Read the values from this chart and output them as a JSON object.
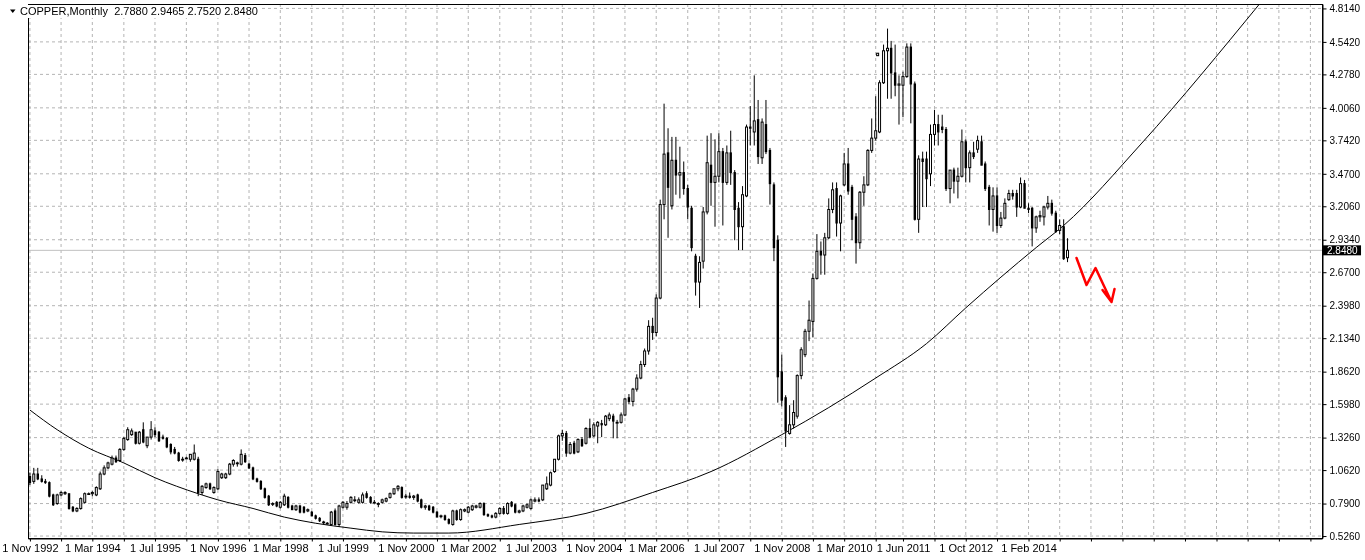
{
  "chart_data": {
    "type": "candlestick",
    "title": "COPPER,Monthly  2.7880 2.9465 2.7520 2.8480",
    "color": "#000000",
    "x": [
      "1992-11",
      "1992-12",
      "1993-01",
      "1993-02",
      "1993-03",
      "1993-04",
      "1993-05",
      "1993-06",
      "1993-07",
      "1993-08",
      "1993-09",
      "1993-10",
      "1993-11",
      "1993-12",
      "1994-01",
      "1994-02",
      "1994-03",
      "1994-04",
      "1994-05",
      "1994-06",
      "1994-07",
      "1994-08",
      "1994-09",
      "1994-10",
      "1994-11",
      "1994-12",
      "1995-01",
      "1995-02",
      "1995-03",
      "1995-04",
      "1995-05",
      "1995-06",
      "1995-07",
      "1995-08",
      "1995-09",
      "1995-10",
      "1995-11",
      "1995-12",
      "1996-01",
      "1996-02",
      "1996-03",
      "1996-04",
      "1996-05",
      "1996-06",
      "1996-07",
      "1996-08",
      "1996-09",
      "1996-10",
      "1996-11",
      "1996-12",
      "1997-01",
      "1997-02",
      "1997-03",
      "1997-04",
      "1997-05",
      "1997-06",
      "1997-07",
      "1997-08",
      "1997-09",
      "1997-10",
      "1997-11",
      "1997-12",
      "1998-01",
      "1998-02",
      "1998-03",
      "1998-04",
      "1998-05",
      "1998-06",
      "1998-07",
      "1998-08",
      "1998-09",
      "1998-10",
      "1998-11",
      "1998-12",
      "1999-01",
      "1999-02",
      "1999-03",
      "1999-04",
      "1999-05",
      "1999-06",
      "1999-07",
      "1999-08",
      "1999-09",
      "1999-10",
      "1999-11",
      "1999-12",
      "2000-01",
      "2000-02",
      "2000-03",
      "2000-04",
      "2000-05",
      "2000-06",
      "2000-07",
      "2000-08",
      "2000-09",
      "2000-10",
      "2000-11",
      "2000-12",
      "2001-01",
      "2001-02",
      "2001-03",
      "2001-04",
      "2001-05",
      "2001-06",
      "2001-07",
      "2001-08",
      "2001-09",
      "2001-10",
      "2001-11",
      "2001-12",
      "2002-01",
      "2002-02",
      "2002-03",
      "2002-04",
      "2002-05",
      "2002-06",
      "2002-07",
      "2002-08",
      "2002-09",
      "2002-10",
      "2002-11",
      "2002-12",
      "2003-01",
      "2003-02",
      "2003-03",
      "2003-04",
      "2003-05",
      "2003-06",
      "2003-07",
      "2003-08",
      "2003-09",
      "2003-10",
      "2003-11",
      "2003-12",
      "2004-01",
      "2004-02",
      "2004-03",
      "2004-04",
      "2004-05",
      "2004-06",
      "2004-07",
      "2004-08",
      "2004-09",
      "2004-10",
      "2004-11",
      "2004-12",
      "2005-01",
      "2005-02",
      "2005-03",
      "2005-04",
      "2005-05",
      "2005-06",
      "2005-07",
      "2005-08",
      "2005-09",
      "2005-10",
      "2005-11",
      "2005-12",
      "2006-01",
      "2006-02",
      "2006-03",
      "2006-04",
      "2006-05",
      "2006-06",
      "2006-07",
      "2006-08",
      "2006-09",
      "2006-10",
      "2006-11",
      "2006-12",
      "2007-01",
      "2007-02",
      "2007-03",
      "2007-04",
      "2007-05",
      "2007-06",
      "2007-07",
      "2007-08",
      "2007-09",
      "2007-10",
      "2007-11",
      "2007-12",
      "2008-01",
      "2008-02",
      "2008-03",
      "2008-04",
      "2008-05",
      "2008-06",
      "2008-07",
      "2008-08",
      "2008-09",
      "2008-10",
      "2008-11",
      "2008-12",
      "2009-01",
      "2009-02",
      "2009-03",
      "2009-04",
      "2009-05",
      "2009-06",
      "2009-07",
      "2009-08",
      "2009-09",
      "2009-10",
      "2009-11",
      "2009-12",
      "2010-01",
      "2010-02",
      "2010-03",
      "2010-04",
      "2010-05",
      "2010-06",
      "2010-07",
      "2010-08",
      "2010-09",
      "2010-10",
      "2010-11",
      "2010-11-16",
      "2010-12",
      "2011-01",
      "2011-02",
      "2011-03",
      "2011-04",
      "2011-05",
      "2011-06",
      "2011-07",
      "2011-08",
      "2011-09",
      "2011-10",
      "2011-11",
      "2011-12",
      "2012-01",
      "2012-02",
      "2012-03",
      "2012-04",
      "2012-05",
      "2012-06",
      "2012-07",
      "2012-08",
      "2012-09",
      "2012-10",
      "2012-11",
      "2012-12",
      "2013-01",
      "2013-02",
      "2013-03",
      "2013-04",
      "2013-05",
      "2013-06",
      "2013-07",
      "2013-08",
      "2013-09",
      "2013-10",
      "2013-11",
      "2013-12",
      "2014-01",
      "2014-02",
      "2014-03",
      "2014-04",
      "2014-05",
      "2014-06",
      "2014-07",
      "2014-08",
      "2014-09",
      "2014-10",
      "2014-11",
      "2014-12"
    ],
    "ohlc": [
      [
        1.01,
        1.04,
        0.94,
        0.96
      ],
      [
        0.97,
        1.08,
        0.95,
        1.03
      ],
      [
        1.03,
        1.08,
        0.98,
        0.99
      ],
      [
        0.99,
        1.02,
        0.96,
        0.97
      ],
      [
        0.97,
        0.99,
        0.95,
        0.96
      ],
      [
        0.96,
        0.97,
        0.84,
        0.85
      ],
      [
        0.86,
        0.87,
        0.77,
        0.78
      ],
      [
        0.79,
        0.87,
        0.78,
        0.86
      ],
      [
        0.86,
        0.89,
        0.85,
        0.88
      ],
      [
        0.87,
        0.89,
        0.86,
        0.88
      ],
      [
        0.87,
        0.87,
        0.74,
        0.75
      ],
      [
        0.76,
        0.77,
        0.72,
        0.73
      ],
      [
        0.73,
        0.76,
        0.72,
        0.75
      ],
      [
        0.75,
        0.84,
        0.74,
        0.83
      ],
      [
        0.8,
        0.88,
        0.79,
        0.87
      ],
      [
        0.87,
        0.88,
        0.86,
        0.87
      ],
      [
        0.87,
        0.89,
        0.85,
        0.88
      ],
      [
        0.86,
        0.93,
        0.85,
        0.92
      ],
      [
        0.91,
        1.05,
        0.9,
        1.03
      ],
      [
        1.03,
        1.1,
        1.02,
        1.08
      ],
      [
        1.08,
        1.13,
        1.07,
        1.12
      ],
      [
        1.11,
        1.18,
        1.1,
        1.16
      ],
      [
        1.16,
        1.18,
        1.12,
        1.13
      ],
      [
        1.14,
        1.24,
        1.13,
        1.23
      ],
      [
        1.23,
        1.33,
        1.22,
        1.32
      ],
      [
        1.31,
        1.41,
        1.3,
        1.39
      ],
      [
        1.35,
        1.4,
        1.34,
        1.38
      ],
      [
        1.37,
        1.37,
        1.27,
        1.28
      ],
      [
        1.28,
        1.38,
        1.27,
        1.37
      ],
      [
        1.39,
        1.45,
        1.28,
        1.29
      ],
      [
        1.26,
        1.33,
        1.24,
        1.33
      ],
      [
        1.33,
        1.46,
        1.31,
        1.39
      ],
      [
        1.38,
        1.41,
        1.33,
        1.35
      ],
      [
        1.37,
        1.38,
        1.29,
        1.3
      ],
      [
        1.33,
        1.35,
        1.31,
        1.32
      ],
      [
        1.32,
        1.33,
        1.24,
        1.25
      ],
      [
        1.27,
        1.28,
        1.19,
        1.21
      ],
      [
        1.23,
        1.25,
        1.19,
        1.2
      ],
      [
        1.2,
        1.21,
        1.13,
        1.14
      ],
      [
        1.15,
        1.17,
        1.13,
        1.15
      ],
      [
        1.16,
        1.17,
        1.15,
        1.16
      ],
      [
        1.15,
        1.19,
        1.13,
        1.19
      ],
      [
        1.15,
        1.27,
        1.14,
        1.2
      ],
      [
        1.15,
        1.17,
        0.85,
        0.88
      ],
      [
        0.88,
        0.94,
        0.86,
        0.93
      ],
      [
        0.92,
        0.96,
        0.91,
        0.95
      ],
      [
        0.95,
        0.96,
        0.9,
        0.91
      ],
      [
        0.88,
        0.93,
        0.87,
        0.92
      ],
      [
        0.91,
        1.07,
        0.9,
        1.05
      ],
      [
        1.0,
        1.04,
        0.99,
        1.03
      ],
      [
        1.0,
        1.04,
        0.99,
        1.03
      ],
      [
        1.03,
        1.12,
        1.02,
        1.11
      ],
      [
        1.11,
        1.15,
        1.09,
        1.14
      ],
      [
        1.12,
        1.13,
        1.09,
        1.12
      ],
      [
        1.11,
        1.23,
        1.1,
        1.19
      ],
      [
        1.18,
        1.2,
        1.12,
        1.13
      ],
      [
        1.11,
        1.12,
        1.07,
        1.08
      ],
      [
        1.08,
        1.09,
        0.98,
        0.99
      ],
      [
        0.99,
        1.0,
        0.96,
        0.97
      ],
      [
        0.97,
        0.98,
        0.9,
        0.91
      ],
      [
        0.91,
        0.92,
        0.83,
        0.84
      ],
      [
        0.85,
        0.86,
        0.77,
        0.78
      ],
      [
        0.79,
        0.8,
        0.77,
        0.79
      ],
      [
        0.8,
        0.81,
        0.76,
        0.77
      ],
      [
        0.76,
        0.81,
        0.75,
        0.8
      ],
      [
        0.78,
        0.87,
        0.77,
        0.85
      ],
      [
        0.84,
        0.85,
        0.75,
        0.76
      ],
      [
        0.77,
        0.78,
        0.74,
        0.74
      ],
      [
        0.74,
        0.78,
        0.73,
        0.77
      ],
      [
        0.77,
        0.78,
        0.71,
        0.72
      ],
      [
        0.76,
        0.77,
        0.71,
        0.72
      ],
      [
        0.73,
        0.75,
        0.72,
        0.74
      ],
      [
        0.72,
        0.73,
        0.69,
        0.69
      ],
      [
        0.69,
        0.7,
        0.66,
        0.67
      ],
      [
        0.67,
        0.68,
        0.64,
        0.65
      ],
      [
        0.64,
        0.65,
        0.62,
        0.64
      ],
      [
        0.63,
        0.64,
        0.62,
        0.63
      ],
      [
        0.62,
        0.73,
        0.61,
        0.72
      ],
      [
        0.73,
        0.75,
        0.61,
        0.62
      ],
      [
        0.62,
        0.78,
        0.6,
        0.77
      ],
      [
        0.76,
        0.81,
        0.75,
        0.8
      ],
      [
        0.76,
        0.81,
        0.74,
        0.79
      ],
      [
        0.8,
        0.85,
        0.79,
        0.84
      ],
      [
        0.82,
        0.85,
        0.8,
        0.82
      ],
      [
        0.8,
        0.84,
        0.79,
        0.82
      ],
      [
        0.8,
        0.88,
        0.79,
        0.86
      ],
      [
        0.87,
        0.89,
        0.83,
        0.84
      ],
      [
        0.84,
        0.85,
        0.79,
        0.8
      ],
      [
        0.8,
        0.82,
        0.79,
        0.8
      ],
      [
        0.79,
        0.8,
        0.76,
        0.79
      ],
      [
        0.8,
        0.83,
        0.79,
        0.82
      ],
      [
        0.81,
        0.84,
        0.8,
        0.83
      ],
      [
        0.84,
        0.88,
        0.83,
        0.87
      ],
      [
        0.87,
        0.91,
        0.86,
        0.91
      ],
      [
        0.91,
        0.94,
        0.89,
        0.93
      ],
      [
        0.92,
        0.93,
        0.83,
        0.84
      ],
      [
        0.85,
        0.87,
        0.83,
        0.85
      ],
      [
        0.85,
        0.88,
        0.83,
        0.84
      ],
      [
        0.84,
        0.86,
        0.82,
        0.85
      ],
      [
        0.86,
        0.87,
        0.8,
        0.81
      ],
      [
        0.82,
        0.83,
        0.75,
        0.76
      ],
      [
        0.76,
        0.78,
        0.74,
        0.77
      ],
      [
        0.77,
        0.78,
        0.73,
        0.74
      ],
      [
        0.76,
        0.77,
        0.71,
        0.72
      ],
      [
        0.72,
        0.73,
        0.68,
        0.68
      ],
      [
        0.69,
        0.7,
        0.67,
        0.69
      ],
      [
        0.69,
        0.7,
        0.65,
        0.66
      ],
      [
        0.66,
        0.67,
        0.62,
        0.63
      ],
      [
        0.62,
        0.74,
        0.61,
        0.73
      ],
      [
        0.73,
        0.74,
        0.65,
        0.66
      ],
      [
        0.66,
        0.75,
        0.65,
        0.74
      ],
      [
        0.73,
        0.75,
        0.72,
        0.74
      ],
      [
        0.72,
        0.77,
        0.71,
        0.76
      ],
      [
        0.74,
        0.78,
        0.73,
        0.77
      ],
      [
        0.76,
        0.78,
        0.75,
        0.77
      ],
      [
        0.76,
        0.8,
        0.75,
        0.79
      ],
      [
        0.79,
        0.8,
        0.69,
        0.7
      ],
      [
        0.7,
        0.71,
        0.68,
        0.69
      ],
      [
        0.69,
        0.7,
        0.67,
        0.68
      ],
      [
        0.68,
        0.72,
        0.67,
        0.71
      ],
      [
        0.71,
        0.76,
        0.7,
        0.75
      ],
      [
        0.75,
        0.77,
        0.7,
        0.71
      ],
      [
        0.71,
        0.8,
        0.7,
        0.79
      ],
      [
        0.8,
        0.81,
        0.76,
        0.77
      ],
      [
        0.78,
        0.79,
        0.71,
        0.72
      ],
      [
        0.72,
        0.74,
        0.71,
        0.73
      ],
      [
        0.73,
        0.78,
        0.72,
        0.77
      ],
      [
        0.76,
        0.79,
        0.75,
        0.78
      ],
      [
        0.75,
        0.83,
        0.74,
        0.82
      ],
      [
        0.81,
        0.84,
        0.8,
        0.82
      ],
      [
        0.82,
        0.84,
        0.8,
        0.81
      ],
      [
        0.82,
        0.94,
        0.81,
        0.94
      ],
      [
        0.91,
        1.01,
        0.9,
        0.95
      ],
      [
        0.94,
        1.05,
        0.93,
        1.04
      ],
      [
        1.05,
        1.15,
        1.04,
        1.15
      ],
      [
        1.15,
        1.35,
        1.14,
        1.34
      ],
      [
        1.34,
        1.39,
        1.3,
        1.36
      ],
      [
        1.36,
        1.38,
        1.17,
        1.2
      ],
      [
        1.2,
        1.29,
        1.19,
        1.27
      ],
      [
        1.28,
        1.3,
        1.19,
        1.2
      ],
      [
        1.21,
        1.32,
        1.2,
        1.31
      ],
      [
        1.31,
        1.33,
        1.25,
        1.26
      ],
      [
        1.28,
        1.41,
        1.27,
        1.4
      ],
      [
        1.4,
        1.48,
        1.32,
        1.33
      ],
      [
        1.34,
        1.45,
        1.33,
        1.43
      ],
      [
        1.42,
        1.46,
        1.28,
        1.45
      ],
      [
        1.44,
        1.47,
        1.33,
        1.43
      ],
      [
        1.43,
        1.51,
        1.42,
        1.5
      ],
      [
        1.48,
        1.53,
        1.46,
        1.51
      ],
      [
        1.5,
        1.52,
        1.32,
        1.46
      ],
      [
        1.45,
        1.47,
        1.32,
        1.45
      ],
      [
        1.45,
        1.53,
        1.44,
        1.51
      ],
      [
        1.51,
        1.65,
        1.5,
        1.64
      ],
      [
        1.65,
        1.68,
        1.6,
        1.62
      ],
      [
        1.62,
        1.73,
        1.58,
        1.72
      ],
      [
        1.72,
        1.84,
        1.7,
        1.81
      ],
      [
        1.81,
        1.95,
        1.8,
        1.92
      ],
      [
        1.92,
        2.05,
        1.9,
        2.03
      ],
      [
        2.03,
        2.28,
        2.0,
        2.23
      ],
      [
        2.23,
        2.3,
        2.12,
        2.18
      ],
      [
        2.18,
        2.49,
        2.15,
        2.46
      ],
      [
        2.46,
        3.26,
        2.45,
        3.22
      ],
      [
        3.22,
        4.04,
        3.1,
        3.63
      ],
      [
        3.64,
        3.84,
        2.95,
        3.36
      ],
      [
        3.21,
        3.77,
        3.18,
        3.58
      ],
      [
        3.58,
        3.77,
        3.3,
        3.46
      ],
      [
        3.46,
        3.69,
        3.27,
        3.48
      ],
      [
        3.48,
        3.57,
        3.3,
        3.35
      ],
      [
        3.35,
        3.38,
        3.1,
        3.2
      ],
      [
        3.19,
        3.21,
        2.84,
        2.87
      ],
      [
        2.8,
        2.82,
        2.48,
        2.59
      ],
      [
        2.59,
        2.8,
        2.38,
        2.75
      ],
      [
        2.76,
        3.2,
        2.7,
        3.16
      ],
      [
        3.16,
        3.78,
        3.14,
        3.56
      ],
      [
        3.54,
        3.8,
        3.21,
        3.4
      ],
      [
        3.4,
        3.75,
        3.04,
        3.45
      ],
      [
        3.45,
        3.8,
        3.4,
        3.65
      ],
      [
        3.65,
        3.68,
        3.05,
        3.4
      ],
      [
        3.4,
        3.7,
        3.38,
        3.64
      ],
      [
        3.64,
        3.82,
        3.38,
        3.48
      ],
      [
        3.48,
        3.5,
        2.93,
        3.18
      ],
      [
        3.19,
        3.24,
        2.85,
        3.04
      ],
      [
        3.04,
        3.37,
        2.85,
        3.3
      ],
      [
        3.29,
        3.87,
        3.28,
        3.85
      ],
      [
        3.85,
        4.02,
        3.7,
        3.84
      ],
      [
        3.81,
        4.27,
        3.7,
        3.9
      ],
      [
        3.91,
        4.07,
        3.55,
        3.61
      ],
      [
        3.6,
        3.92,
        3.55,
        3.89
      ],
      [
        3.87,
        4.07,
        3.63,
        3.65
      ],
      [
        3.66,
        3.68,
        3.22,
        3.39
      ],
      [
        3.38,
        3.4,
        2.76,
        2.87
      ],
      [
        2.93,
        2.97,
        1.61,
        1.82
      ],
      [
        1.86,
        2.0,
        1.58,
        1.63
      ],
      [
        1.65,
        1.67,
        1.25,
        1.38
      ],
      [
        1.36,
        1.59,
        1.35,
        1.43
      ],
      [
        1.43,
        1.63,
        1.4,
        1.53
      ],
      [
        1.5,
        1.84,
        1.48,
        1.83
      ],
      [
        1.83,
        2.06,
        1.8,
        2.04
      ],
      [
        2.0,
        2.21,
        1.98,
        2.19
      ],
      [
        2.19,
        2.44,
        2.11,
        2.28
      ],
      [
        2.27,
        2.66,
        2.14,
        2.62
      ],
      [
        2.62,
        2.98,
        2.61,
        2.84
      ],
      [
        2.84,
        2.92,
        2.65,
        2.81
      ],
      [
        2.81,
        2.99,
        2.65,
        2.95
      ],
      [
        2.95,
        3.27,
        2.94,
        3.18
      ],
      [
        3.18,
        3.4,
        3.15,
        3.34
      ],
      [
        3.35,
        3.4,
        2.96,
        3.07
      ],
      [
        3.07,
        3.3,
        2.84,
        3.29
      ],
      [
        3.38,
        3.64,
        3.37,
        3.55
      ],
      [
        3.55,
        3.68,
        3.3,
        3.33
      ],
      [
        3.36,
        3.38,
        2.93,
        3.1
      ],
      [
        3.12,
        3.15,
        2.74,
        2.91
      ],
      [
        2.91,
        3.33,
        2.86,
        3.32
      ],
      [
        3.32,
        3.45,
        3.21,
        3.38
      ],
      [
        3.38,
        3.67,
        3.37,
        3.66
      ],
      [
        3.66,
        3.92,
        3.64,
        3.76
      ],
      [
        3.76,
        4.1,
        3.74,
        3.82
      ],
      [
        4.43,
        4.45,
        4.43,
        4.45
      ],
      [
        3.81,
        4.23,
        3.8,
        4.21
      ],
      [
        4.21,
        4.52,
        4.2,
        4.47
      ],
      [
        4.47,
        4.65,
        4.08,
        4.49
      ],
      [
        4.49,
        4.55,
        4.08,
        4.29
      ],
      [
        4.29,
        4.52,
        4.1,
        4.19
      ],
      [
        4.19,
        4.27,
        3.87,
        4.2
      ],
      [
        4.19,
        4.3,
        3.93,
        4.26
      ],
      [
        4.26,
        4.53,
        4.25,
        4.5
      ],
      [
        4.5,
        4.53,
        3.88,
        4.2
      ],
      [
        4.2,
        4.22,
        3.09,
        3.1
      ],
      [
        3.1,
        3.62,
        2.99,
        3.59
      ],
      [
        3.59,
        3.65,
        3.2,
        3.57
      ],
      [
        3.59,
        3.65,
        3.2,
        3.43
      ],
      [
        3.47,
        3.87,
        3.37,
        3.79
      ],
      [
        3.79,
        3.99,
        3.7,
        3.87
      ],
      [
        3.87,
        3.95,
        3.7,
        3.81
      ],
      [
        3.85,
        3.95,
        3.8,
        3.83
      ],
      [
        3.83,
        3.85,
        3.33,
        3.35
      ],
      [
        3.35,
        3.5,
        3.23,
        3.5
      ],
      [
        3.5,
        3.52,
        3.31,
        3.41
      ],
      [
        3.41,
        3.52,
        3.27,
        3.45
      ],
      [
        3.45,
        3.83,
        3.44,
        3.73
      ],
      [
        3.73,
        3.75,
        3.4,
        3.52
      ],
      [
        3.52,
        3.66,
        3.4,
        3.64
      ],
      [
        3.64,
        3.73,
        3.59,
        3.61
      ],
      [
        3.67,
        3.78,
        3.64,
        3.74
      ],
      [
        3.73,
        3.78,
        3.54,
        3.54
      ],
      [
        3.55,
        3.57,
        3.33,
        3.35
      ],
      [
        3.36,
        3.38,
        3.05,
        3.18
      ],
      [
        3.18,
        3.36,
        3.0,
        3.29
      ],
      [
        3.29,
        3.36,
        2.99,
        3.05
      ],
      [
        3.05,
        3.16,
        3.03,
        3.11
      ],
      [
        3.11,
        3.27,
        3.1,
        3.23
      ],
      [
        3.26,
        3.34,
        3.25,
        3.31
      ],
      [
        3.31,
        3.34,
        3.26,
        3.29
      ],
      [
        3.31,
        3.34,
        3.12,
        3.2
      ],
      [
        3.2,
        3.44,
        3.19,
        3.39
      ],
      [
        3.39,
        3.42,
        3.19,
        3.19
      ],
      [
        3.19,
        3.23,
        3.15,
        3.18
      ],
      [
        3.19,
        3.2,
        2.88,
        3.03
      ],
      [
        3.03,
        3.13,
        2.99,
        3.12
      ],
      [
        3.12,
        3.17,
        3.08,
        3.13
      ],
      [
        3.12,
        3.21,
        3.05,
        3.2
      ],
      [
        3.2,
        3.29,
        3.18,
        3.23
      ],
      [
        3.23,
        3.26,
        3.13,
        3.15
      ],
      [
        3.15,
        3.17,
        2.99,
        3.0
      ],
      [
        3.01,
        3.1,
        2.98,
        3.05
      ],
      [
        3.04,
        3.1,
        2.77,
        2.78
      ],
      [
        2.788,
        2.9465,
        2.752,
        2.848
      ]
    ],
    "series": [
      {
        "type": "line",
        "color": "#000000",
        "x": [
          "1992-11",
          "1993-06",
          "1994-02",
          "1994-11",
          "1995-07",
          "1996-06",
          "1996-11",
          "1997-08",
          "1998-04",
          "1998-12",
          "1999-09",
          "2000-05",
          "2001-01",
          "2001-10",
          "2003-04",
          "2004-09",
          "2006-02",
          "2007-05",
          "2008-11",
          "2009-11",
          "2010-11",
          "2011-12",
          "2012-10",
          "2014-04",
          "2014-11",
          "2016-07",
          "2019-01"
        ],
        "values": [
          1.55,
          1.39,
          1.24,
          1.12,
          1.0,
          0.87,
          0.82,
          0.75,
          0.68,
          0.63,
          0.59,
          0.56,
          0.55,
          0.55,
          0.62,
          0.71,
          0.88,
          1.05,
          1.35,
          1.57,
          1.81,
          2.09,
          2.38,
          2.87,
          3.05,
          3.72,
          4.85
        ]
      }
    ],
    "xlim": [
      "1992-10-17",
      "2020-05-01"
    ],
    "xticks": [
      {
        "value": "1992-11",
        "label": "1 Nov 1992"
      },
      {
        "value": "1993-07",
        "label": null
      },
      {
        "value": "1994-03",
        "label": "1 Mar 1994"
      },
      {
        "value": "1994-11",
        "label": null
      },
      {
        "value": "1995-07",
        "label": "1 Jul 1995"
      },
      {
        "value": "1996-03",
        "label": null
      },
      {
        "value": "1996-11",
        "label": "1 Nov 1996"
      },
      {
        "value": "1997-07",
        "label": null
      },
      {
        "value": "1998-03",
        "label": "1 Mar 1998"
      },
      {
        "value": "1998-11",
        "label": null
      },
      {
        "value": "1999-07",
        "label": "1 Jul 1999"
      },
      {
        "value": "2000-03",
        "label": null
      },
      {
        "value": "2000-11",
        "label": "1 Nov 2000"
      },
      {
        "value": "2001-07",
        "label": null
      },
      {
        "value": "2002-03",
        "label": "1 Mar 2002"
      },
      {
        "value": "2002-11",
        "label": null
      },
      {
        "value": "2003-07",
        "label": "1 Jul 2003"
      },
      {
        "value": "2004-03",
        "label": null
      },
      {
        "value": "2004-11",
        "label": "1 Nov 2004"
      },
      {
        "value": "2005-07",
        "label": null
      },
      {
        "value": "2006-03",
        "label": "1 Mar 2006"
      },
      {
        "value": "2006-11",
        "label": null
      },
      {
        "value": "2007-07",
        "label": "1 Jul 2007"
      },
      {
        "value": "2008-03",
        "label": null
      },
      {
        "value": "2008-11",
        "label": "1 Nov 2008"
      },
      {
        "value": "2009-07",
        "label": null
      },
      {
        "value": "2010-03",
        "label": "1 Mar 2010"
      },
      {
        "value": "2010-11",
        "label": null
      },
      {
        "value": "2011-06",
        "label": "1 Jun 2011"
      },
      {
        "value": "2012-02",
        "label": null
      },
      {
        "value": "2012-10",
        "label": "1 Oct 2012"
      },
      {
        "value": "2013-06",
        "label": null
      },
      {
        "value": "2014-02",
        "label": "1 Feb 2014"
      },
      {
        "value": "2014-10",
        "label": null
      },
      {
        "value": "2015-06",
        "label": null
      },
      {
        "value": "2016-02",
        "label": null
      },
      {
        "value": "2016-10",
        "label": null
      },
      {
        "value": "2017-06",
        "label": null
      },
      {
        "value": "2018-02",
        "label": null
      },
      {
        "value": "2018-10",
        "label": null
      },
      {
        "value": "2019-06",
        "label": null
      },
      {
        "value": "2020-02",
        "label": null
      }
    ],
    "ylim": [
      0.51,
      4.85
    ],
    "yticks": [
      {
        "value": 0.526,
        "label": "0.5260"
      },
      {
        "value": 0.79,
        "label": "0.7900"
      },
      {
        "value": 1.062,
        "label": "1.0620"
      },
      {
        "value": 1.326,
        "label": "1.3260"
      },
      {
        "value": 1.598,
        "label": "1.5980"
      },
      {
        "value": 1.862,
        "label": "1.8620"
      },
      {
        "value": 2.134,
        "label": "2.1340"
      },
      {
        "value": 2.398,
        "label": "2.3980"
      },
      {
        "value": 2.67,
        "label": "2.6700"
      },
      {
        "value": 2.934,
        "label": "2.9340"
      },
      {
        "value": 3.206,
        "label": "3.2060"
      },
      {
        "value": 3.47,
        "label": "3.4700"
      },
      {
        "value": 3.742,
        "label": "3.7420"
      },
      {
        "value": 4.006,
        "label": "4.0060"
      },
      {
        "value": 4.278,
        "label": "4.2780"
      },
      {
        "value": 4.542,
        "label": "4.5420"
      },
      {
        "value": 4.814,
        "label": "4.8140"
      }
    ],
    "grid": true,
    "ref_lines": [
      {
        "axis": "y",
        "value": 2.848,
        "label": "2.8480",
        "color": "#c0c0c0"
      }
    ]
  }
}
